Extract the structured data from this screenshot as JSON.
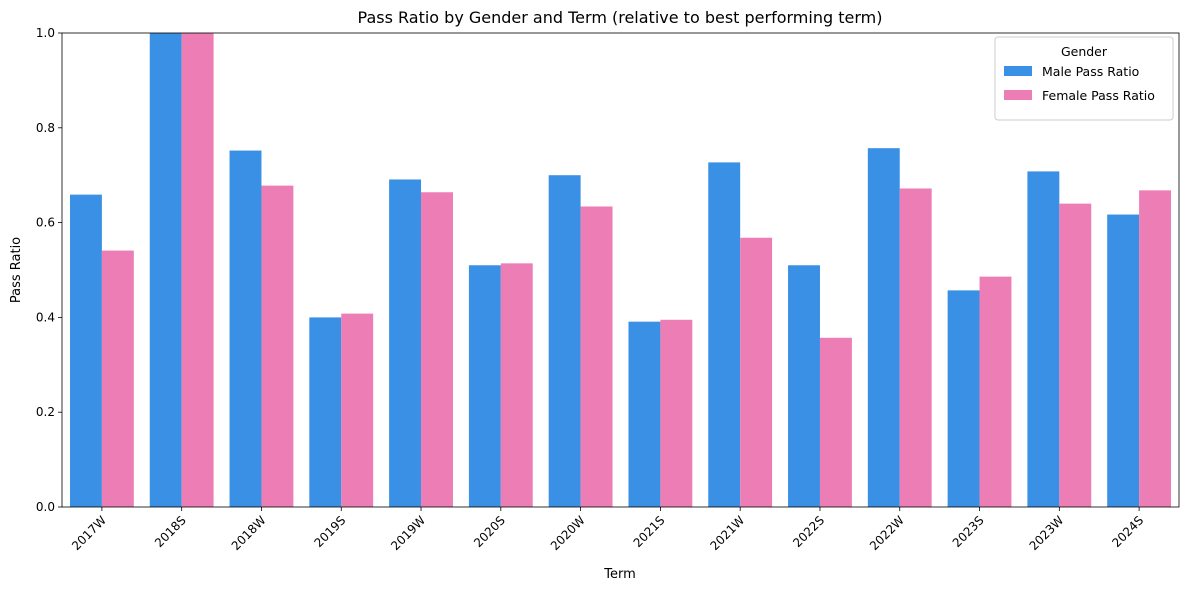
{
  "chart_data": {
    "type": "bar",
    "title": "Pass Ratio by Gender and Term (relative to best performing term)",
    "xlabel": "Term",
    "ylabel": "Pass Ratio",
    "ylim": [
      0,
      1.0
    ],
    "yticks": [
      "0.0",
      "0.2",
      "0.4",
      "0.6",
      "0.8",
      "1.0"
    ],
    "categories": [
      "2017W",
      "2018S",
      "2018W",
      "2019S",
      "2019W",
      "2020S",
      "2020W",
      "2021S",
      "2021W",
      "2022S",
      "2022W",
      "2023S",
      "2023W",
      "2024S"
    ],
    "legend": {
      "title": "Gender",
      "position": "top-right"
    },
    "grid": false,
    "series": [
      {
        "name": "Male Pass Ratio",
        "color": "#3990e4",
        "values": [
          0.659,
          1.0,
          0.752,
          0.4,
          0.691,
          0.51,
          0.7,
          0.391,
          0.727,
          0.51,
          0.757,
          0.457,
          0.708,
          0.617
        ]
      },
      {
        "name": "Female Pass Ratio",
        "color": "#ec7db5",
        "values": [
          0.541,
          1.0,
          0.678,
          0.408,
          0.664,
          0.514,
          0.634,
          0.395,
          0.568,
          0.357,
          0.672,
          0.486,
          0.64,
          0.668
        ]
      }
    ]
  }
}
